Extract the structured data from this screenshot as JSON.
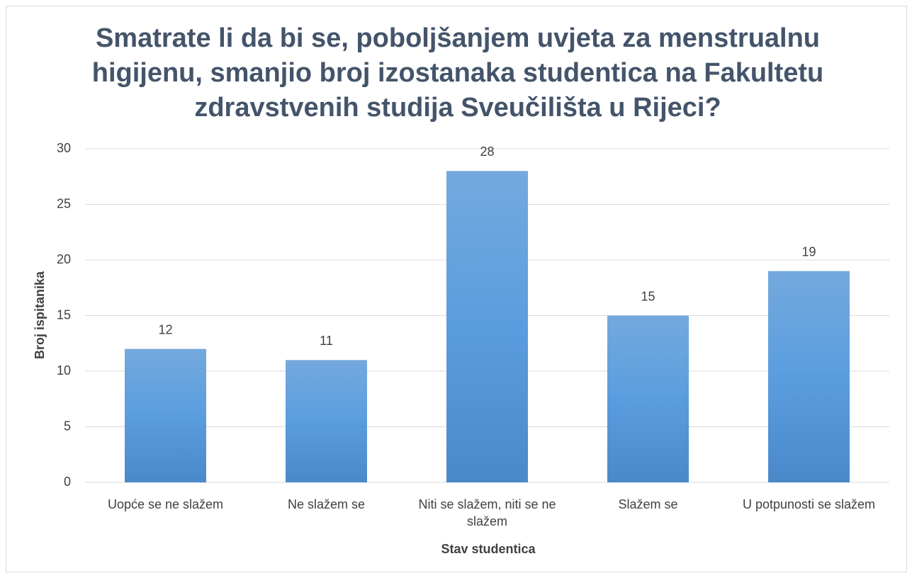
{
  "chart_data": {
    "type": "bar",
    "title": "Smatrate li da bi se, poboljšanjem uvjeta za menstrualnu higijenu, smanjio broj izostanaka studentica na Fakultetu zdravstvenih studija Sveučilišta u Rijeci?",
    "x_label": "Stav studentica",
    "y_label": "Broj ispitanika",
    "categories": [
      "Uopće se ne slažem",
      "Ne slažem se",
      "Niti se slažem, niti se ne slažem",
      "Slažem se",
      "U potpunosti se slažem"
    ],
    "values": [
      12,
      11,
      28,
      15,
      19
    ],
    "color": "#5b9bd5",
    "ylim": [
      0,
      30
    ],
    "yticks": [
      0,
      5,
      10,
      15,
      20,
      25,
      30
    ],
    "grid": true
  }
}
